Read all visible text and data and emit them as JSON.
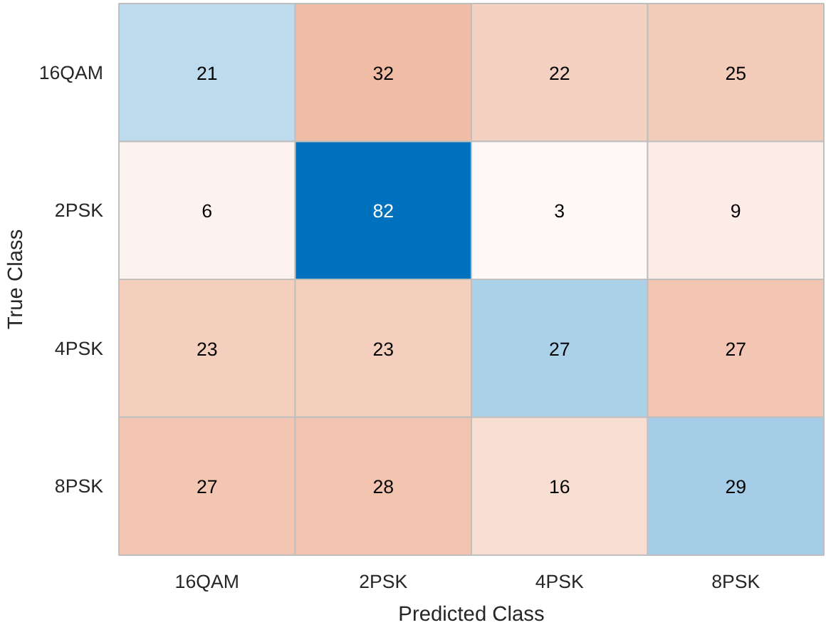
{
  "chart_data": {
    "type": "heatmap",
    "data_labels": true,
    "xlabel": "Predicted Class",
    "ylabel": "True Class",
    "categories": [
      "16QAM",
      "2PSK",
      "4PSK",
      "8PSK"
    ],
    "y_categories": [
      "16QAM",
      "2PSK",
      "4PSK",
      "8PSK"
    ],
    "cells": [
      [
        21,
        32,
        22,
        25
      ],
      [
        6,
        82,
        3,
        9
      ],
      [
        23,
        23,
        27,
        27
      ],
      [
        27,
        28,
        16,
        29
      ]
    ]
  }
}
